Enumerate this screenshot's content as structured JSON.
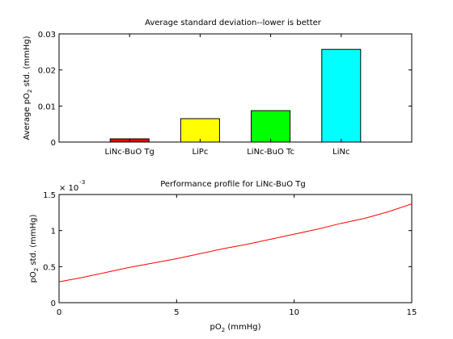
{
  "chart_data": [
    {
      "type": "bar",
      "title": "Average standard deviation--lower is better",
      "ylabel_parts": [
        "Average pO",
        "2",
        " std. (mmHg)"
      ],
      "categories": [
        "LiNc-BuO Tg",
        "LiPc",
        "LiNc-BuO Tc",
        "LiNc"
      ],
      "values": [
        0.0009,
        0.0065,
        0.0087,
        0.0257
      ],
      "colors": [
        "#ff0000",
        "#ffff00",
        "#00ff00",
        "#00ffff"
      ],
      "ylim": [
        0,
        0.03
      ],
      "yticks": [
        0,
        0.01,
        0.02,
        0.03
      ],
      "ytick_labels": [
        "0",
        "0.01",
        "0.02",
        "0.03"
      ],
      "grid": false
    },
    {
      "type": "line",
      "title": "Performance profile for LiNc-BuO Tg",
      "xlabel_parts": [
        "pO",
        "2",
        " (mmHg)"
      ],
      "ylabel_parts": [
        "pO",
        "2",
        " std. (mmHg)"
      ],
      "y_multiplier": {
        "base": "× 10",
        "exponent": "-3"
      },
      "xlim": [
        0,
        15
      ],
      "ylim": [
        0,
        1.5
      ],
      "xticks": [
        0,
        5,
        10,
        15
      ],
      "xtick_labels": [
        "0",
        "5",
        "10",
        "15"
      ],
      "yticks": [
        0,
        0.5,
        1,
        1.5
      ],
      "ytick_labels": [
        "0",
        "0.5",
        "1",
        "1.5"
      ],
      "series": [
        {
          "color": "#ff0000",
          "x": [
            0,
            1,
            2,
            3,
            4,
            5,
            6,
            7,
            8,
            9,
            10,
            11,
            12,
            13,
            14,
            15
          ],
          "y": [
            0.29,
            0.35,
            0.42,
            0.49,
            0.55,
            0.61,
            0.68,
            0.75,
            0.81,
            0.88,
            0.95,
            1.02,
            1.1,
            1.17,
            1.26,
            1.37
          ]
        }
      ],
      "grid": false
    }
  ]
}
